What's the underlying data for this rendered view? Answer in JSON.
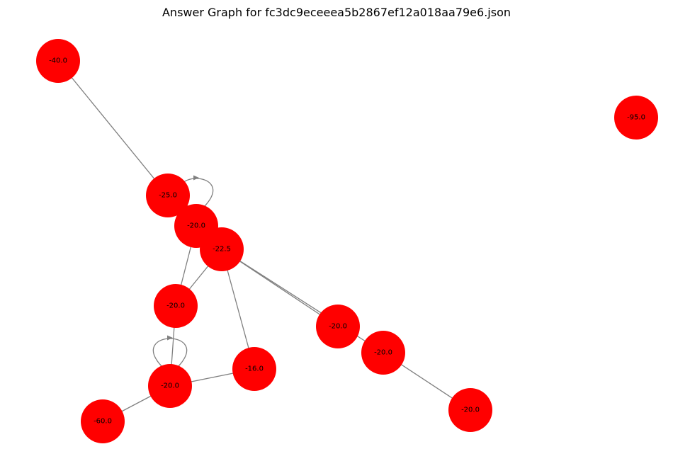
{
  "title": "Answer Graph for fc3dc9eceeea5b2867ef12a018aa79e6.json",
  "colors": {
    "node": "#ff0000",
    "edge": "#808080",
    "label": "#000000"
  },
  "graph": {
    "nodes": [
      {
        "id": "n1",
        "label": "-40.0"
      },
      {
        "id": "n2",
        "label": "-95.0"
      },
      {
        "id": "n3",
        "label": "-25.0"
      },
      {
        "id": "n4",
        "label": "-20.0"
      },
      {
        "id": "n5",
        "label": "-22.5"
      },
      {
        "id": "n6",
        "label": "-20.0"
      },
      {
        "id": "n7",
        "label": "-20.0"
      },
      {
        "id": "n8",
        "label": "-20.0"
      },
      {
        "id": "n9",
        "label": "-16.0"
      },
      {
        "id": "n10",
        "label": "-20.0"
      },
      {
        "id": "n11",
        "label": "-60.0"
      },
      {
        "id": "n12",
        "label": "-20.0"
      }
    ],
    "edges": [
      {
        "source": "n1",
        "target": "n3"
      },
      {
        "source": "n4",
        "target": "n4",
        "self_loop": true
      },
      {
        "source": "n10",
        "target": "n10",
        "self_loop": true
      },
      {
        "source": "n4",
        "target": "n6"
      },
      {
        "source": "n5",
        "target": "n6"
      },
      {
        "source": "n5",
        "target": "n9"
      },
      {
        "source": "n5",
        "target": "n7"
      },
      {
        "source": "n5",
        "target": "n8"
      },
      {
        "source": "n8",
        "target": "n12"
      },
      {
        "source": "n6",
        "target": "n10"
      },
      {
        "source": "n10",
        "target": "n9"
      },
      {
        "source": "n10",
        "target": "n11"
      }
    ]
  }
}
